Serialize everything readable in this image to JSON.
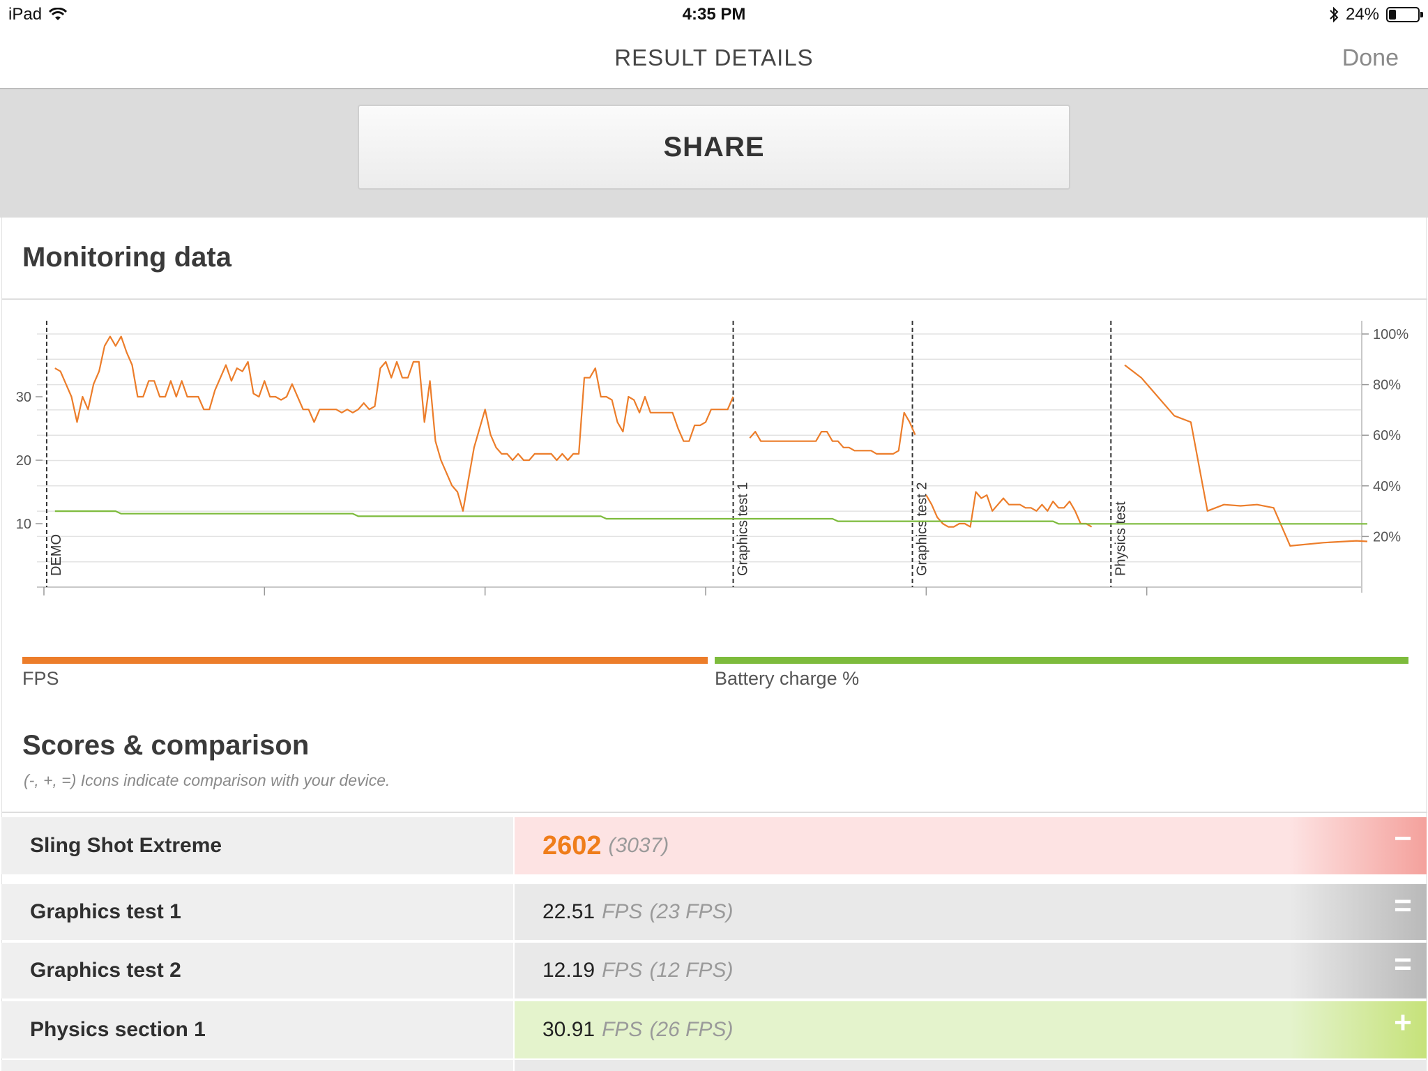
{
  "status_bar": {
    "device": "iPad",
    "time": "4:35 PM",
    "battery_percent": "24%",
    "battery_level": 0.24
  },
  "nav": {
    "title": "RESULT DETAILS",
    "done_label": "Done"
  },
  "share": {
    "label": "SHARE"
  },
  "monitoring": {
    "title": "Monitoring data",
    "legend": [
      {
        "label": "FPS",
        "color": "#ec7d2a"
      },
      {
        "label": "Battery charge %",
        "color": "#7dbb3c"
      }
    ]
  },
  "chart_data": {
    "type": "line",
    "x_ticks": [
      "00:00",
      "00:40",
      "01:20",
      "02:00",
      "02:40",
      "03:20"
    ],
    "x_range_seconds": [
      0,
      240
    ],
    "y_left_ticks": [
      "10",
      "20",
      "30"
    ],
    "y_left_range": [
      0,
      44
    ],
    "y_right_ticks": [
      "20%",
      "40%",
      "60%",
      "80%",
      "100%"
    ],
    "y_right_range": [
      0,
      110
    ],
    "grid": true,
    "markers": [
      {
        "label": "DEMO",
        "t": 0.5
      },
      {
        "label": "Graphics test 1",
        "t": 125
      },
      {
        "label": "Graphics test 2",
        "t": 157.5
      },
      {
        "label": "Physics test",
        "t": 193.5
      }
    ],
    "series": [
      {
        "name": "FPS",
        "color": "#ec7d2a",
        "segments": [
          [
            [
              2,
              34.5
            ],
            [
              3,
              34
            ],
            [
              4,
              32
            ],
            [
              5,
              30
            ],
            [
              6,
              26
            ],
            [
              7,
              30
            ],
            [
              8,
              28
            ],
            [
              9,
              32
            ],
            [
              10,
              34
            ],
            [
              11,
              38
            ],
            [
              12,
              39.5
            ],
            [
              13,
              38
            ],
            [
              14,
              39.5
            ],
            [
              15,
              37
            ],
            [
              16,
              35
            ],
            [
              17,
              30
            ],
            [
              18,
              30
            ],
            [
              19,
              32.5
            ],
            [
              20,
              32.5
            ],
            [
              21,
              30
            ],
            [
              22,
              30
            ],
            [
              23,
              32.5
            ],
            [
              24,
              30
            ],
            [
              25,
              32.5
            ],
            [
              26,
              30
            ],
            [
              27,
              30
            ],
            [
              28,
              30
            ],
            [
              29,
              28
            ],
            [
              30,
              28
            ],
            [
              31,
              31
            ],
            [
              32,
              33
            ],
            [
              33,
              35
            ],
            [
              34,
              32.5
            ],
            [
              35,
              34.5
            ],
            [
              36,
              34
            ],
            [
              37,
              35.5
            ],
            [
              38,
              30.5
            ],
            [
              39,
              30
            ],
            [
              40,
              32.5
            ],
            [
              41,
              30
            ],
            [
              42,
              30
            ],
            [
              43,
              29.5
            ],
            [
              44,
              30
            ],
            [
              45,
              32
            ],
            [
              46,
              30
            ],
            [
              47,
              28
            ],
            [
              48,
              28
            ],
            [
              49,
              26
            ],
            [
              50,
              28
            ],
            [
              51,
              28
            ],
            [
              52,
              28
            ],
            [
              53,
              28
            ],
            [
              54,
              27.5
            ],
            [
              55,
              28
            ],
            [
              56,
              27.5
            ],
            [
              57,
              28
            ],
            [
              58,
              29
            ],
            [
              59,
              28
            ],
            [
              60,
              28.5
            ],
            [
              61,
              34.5
            ],
            [
              62,
              35.5
            ],
            [
              63,
              33
            ],
            [
              64,
              35.5
            ],
            [
              65,
              33
            ],
            [
              66,
              33
            ],
            [
              67,
              35.5
            ],
            [
              68,
              35.5
            ],
            [
              69,
              26
            ],
            [
              70,
              32.5
            ],
            [
              71,
              23
            ],
            [
              72,
              20
            ],
            [
              73,
              18
            ],
            [
              74,
              16
            ],
            [
              75,
              15
            ],
            [
              76,
              12
            ],
            [
              77,
              17
            ],
            [
              78,
              22
            ],
            [
              79,
              25
            ],
            [
              80,
              28
            ],
            [
              81,
              24
            ],
            [
              82,
              22
            ],
            [
              83,
              21
            ],
            [
              84,
              21
            ],
            [
              85,
              20
            ],
            [
              86,
              21
            ],
            [
              87,
              20
            ],
            [
              88,
              20
            ],
            [
              89,
              21
            ],
            [
              90,
              21
            ],
            [
              91,
              21
            ],
            [
              92,
              21
            ],
            [
              93,
              20
            ],
            [
              94,
              21
            ],
            [
              95,
              20
            ],
            [
              96,
              21
            ],
            [
              97,
              21
            ],
            [
              98,
              33
            ],
            [
              99,
              33
            ],
            [
              100,
              34.5
            ],
            [
              101,
              30
            ],
            [
              102,
              30
            ],
            [
              103,
              29.5
            ],
            [
              104,
              26
            ],
            [
              105,
              24.5
            ],
            [
              106,
              30
            ],
            [
              107,
              29.5
            ],
            [
              108,
              27.5
            ],
            [
              109,
              30
            ],
            [
              110,
              27.5
            ],
            [
              111,
              27.5
            ],
            [
              112,
              27.5
            ],
            [
              113,
              27.5
            ],
            [
              114,
              27.5
            ],
            [
              115,
              25
            ],
            [
              116,
              23
            ],
            [
              117,
              23
            ],
            [
              118,
              25.5
            ],
            [
              119,
              25.5
            ],
            [
              120,
              26
            ],
            [
              121,
              28
            ],
            [
              122,
              28
            ],
            [
              123,
              28
            ],
            [
              124,
              28
            ],
            [
              125,
              30
            ]
          ],
          [
            [
              128,
              23.5
            ],
            [
              129,
              24.5
            ],
            [
              130,
              23
            ],
            [
              131,
              23
            ],
            [
              132,
              23
            ],
            [
              133,
              23
            ],
            [
              134,
              23
            ],
            [
              135,
              23
            ],
            [
              136,
              23
            ],
            [
              137,
              23
            ],
            [
              138,
              23
            ],
            [
              139,
              23
            ],
            [
              140,
              23
            ],
            [
              141,
              24.5
            ],
            [
              142,
              24.5
            ],
            [
              143,
              23
            ],
            [
              144,
              23
            ],
            [
              145,
              22
            ],
            [
              146,
              22
            ],
            [
              147,
              21.5
            ],
            [
              148,
              21.5
            ],
            [
              149,
              21.5
            ],
            [
              150,
              21.5
            ],
            [
              151,
              21
            ],
            [
              152,
              21
            ],
            [
              153,
              21
            ],
            [
              154,
              21
            ],
            [
              155,
              21.5
            ],
            [
              156,
              27.5
            ],
            [
              157,
              26
            ],
            [
              158,
              24
            ]
          ],
          [
            [
              160,
              14.5
            ],
            [
              161,
              13
            ],
            [
              162,
              11
            ],
            [
              163,
              10
            ],
            [
              164,
              9.5
            ],
            [
              165,
              9.5
            ],
            [
              166,
              10
            ],
            [
              167,
              10
            ],
            [
              168,
              9.5
            ],
            [
              169,
              15
            ],
            [
              170,
              14
            ],
            [
              171,
              14.5
            ],
            [
              172,
              12
            ],
            [
              173,
              13
            ],
            [
              174,
              14
            ],
            [
              175,
              13
            ],
            [
              176,
              13
            ],
            [
              177,
              13
            ],
            [
              178,
              12.5
            ],
            [
              179,
              12.5
            ],
            [
              180,
              12
            ],
            [
              181,
              13
            ],
            [
              182,
              12
            ],
            [
              183,
              13.5
            ],
            [
              184,
              12.5
            ],
            [
              185,
              12.5
            ],
            [
              186,
              13.5
            ],
            [
              187,
              12
            ],
            [
              188,
              10
            ],
            [
              189,
              10
            ],
            [
              190,
              9.5
            ]
          ],
          [
            [
              196,
              35
            ],
            [
              199,
              33
            ],
            [
              205,
              27
            ],
            [
              208,
              26
            ],
            [
              211,
              12
            ],
            [
              214,
              13
            ],
            [
              217,
              12.8
            ],
            [
              220,
              13
            ],
            [
              223,
              12.5
            ],
            [
              226,
              6.5
            ],
            [
              232,
              7
            ],
            [
              238,
              7.3
            ],
            [
              240,
              7.2
            ]
          ]
        ]
      },
      {
        "name": "Battery charge %",
        "color": "#7dbb3c",
        "segments": [
          [
            [
              2,
              30
            ],
            [
              13,
              30
            ],
            [
              14,
              29
            ],
            [
              56,
              29
            ],
            [
              57,
              28
            ],
            [
              101,
              28
            ],
            [
              102,
              27
            ],
            [
              143,
              27
            ],
            [
              144,
              26
            ],
            [
              183,
              26
            ],
            [
              184,
              25
            ],
            [
              240,
              25
            ]
          ]
        ]
      }
    ]
  },
  "scores": {
    "title": "Scores & comparison",
    "subtitle": "(-, +, =) Icons indicate comparison with your device.",
    "rows": [
      {
        "name": "Sling Shot Extreme",
        "value": "2602",
        "unit": "",
        "compare": "(3037)",
        "icon": "−",
        "icon_name": "minus-icon",
        "bg": "#fde3e3",
        "fade": "#f4a19c",
        "big": true
      },
      {
        "name": "Graphics test 1",
        "value": "22.51",
        "unit": "FPS",
        "compare": "(23 FPS)",
        "icon": "=",
        "icon_name": "equals-icon",
        "bg": "#e9e9e9",
        "fade": "#b9b9b9",
        "big": false
      },
      {
        "name": "Graphics test 2",
        "value": "12.19",
        "unit": "FPS",
        "compare": "(12 FPS)",
        "icon": "=",
        "icon_name": "equals-icon",
        "bg": "#e9e9e9",
        "fade": "#b9b9b9",
        "big": false
      },
      {
        "name": "Physics section 1",
        "value": "30.91",
        "unit": "FPS",
        "compare": "(26 FPS)",
        "icon": "+",
        "icon_name": "plus-icon",
        "bg": "#e4f3cc",
        "fade": "#c6e27a",
        "big": false
      }
    ]
  }
}
